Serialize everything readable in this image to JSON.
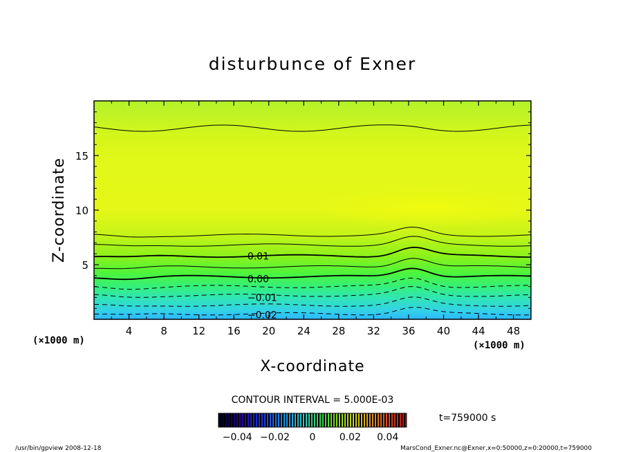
{
  "chart_data": {
    "type": "heatmap",
    "title": "disturbunce of Exner",
    "xlabel": "X-coordinate",
    "ylabel": "Z-coordinate",
    "x_unit": "(×1000 m)",
    "y_unit": "(×1000 m)",
    "xlim": [
      0,
      50
    ],
    "ylim": [
      0,
      20
    ],
    "x_ticks": [
      4,
      8,
      12,
      16,
      20,
      24,
      28,
      32,
      36,
      40,
      44,
      48
    ],
    "y_ticks": [
      5,
      10,
      15
    ],
    "contour_labels": [
      {
        "text": "0.01",
        "x": 17.4,
        "z": 5.8
      },
      {
        "text": "0.00",
        "x": 17.4,
        "z": 3.7
      },
      {
        "text": "−0.01",
        "x": 17.4,
        "z": 2.0
      },
      {
        "text": "−0.02",
        "x": 17.4,
        "z": 0.4
      }
    ],
    "contour_interval_text": "CONTOUR INTERVAL = 5.000E-03",
    "time_text": "t=759000 s",
    "colorbar": {
      "min": -0.05,
      "max": 0.05,
      "tick_labels": [
        "−0.04",
        "−0.02",
        "0",
        "0.02",
        "0.04"
      ],
      "tick_values": [
        -0.04,
        -0.02,
        0,
        0.02,
        0.04
      ]
    },
    "contours_at_x_edge": [
      {
        "level": -0.02,
        "z": 0.5,
        "style": "dashed"
      },
      {
        "level": -0.015,
        "z": 1.3,
        "style": "dashed"
      },
      {
        "level": -0.01,
        "z": 2.2,
        "style": "dashed"
      },
      {
        "level": -0.005,
        "z": 3.0,
        "style": "dashed"
      },
      {
        "level": 0.0,
        "z": 3.9,
        "style": "solid-thick"
      },
      {
        "level": 0.005,
        "z": 4.8,
        "style": "solid"
      },
      {
        "level": 0.01,
        "z": 5.8,
        "style": "solid-thick"
      },
      {
        "level": 0.015,
        "z": 6.8,
        "style": "solid"
      },
      {
        "level": 0.02,
        "z": 7.7,
        "style": "solid"
      },
      {
        "level": 0.02,
        "z": 17.5,
        "style": "solid"
      }
    ]
  },
  "footer": {
    "left": "/usr/bin/gpview   2008-12-18",
    "right": "MarsCond_Exner.nc@Exner,x=0:50000,z=0:20000,t=759000"
  }
}
